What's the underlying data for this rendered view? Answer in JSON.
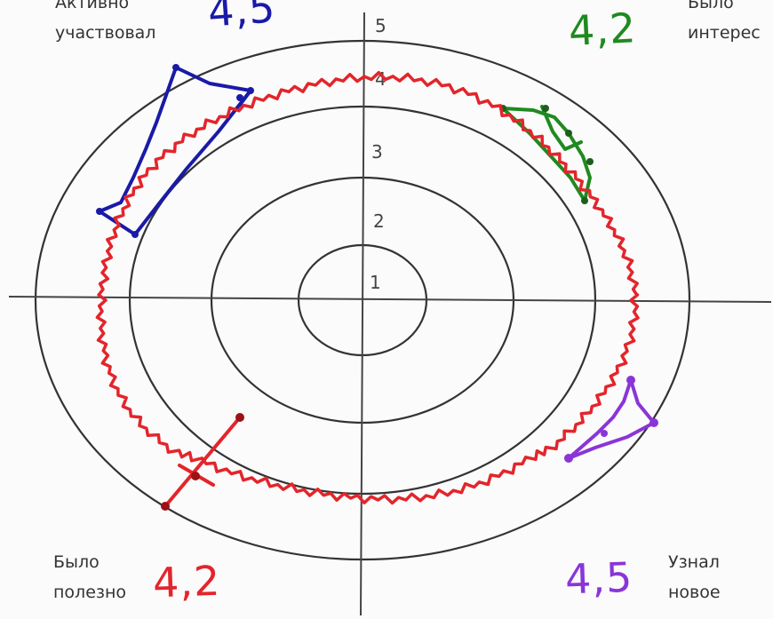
{
  "quadrants": {
    "top_left": {
      "label_1": "Активно",
      "label_2": "участвовал",
      "score": "4,5",
      "color": "#1a1aa8"
    },
    "top_right": {
      "label_1": "Было",
      "label_2": "интерес",
      "score": "4,2",
      "color": "#1f8a1f"
    },
    "bottom_left": {
      "label_1": "Было",
      "label_2": "полезно",
      "score": "4,2",
      "color": "#e3252b"
    },
    "bottom_right": {
      "label_1": "Узнал",
      "label_2": "новое",
      "score": "4,5",
      "color": "#8a35d8"
    }
  },
  "ring_labels": [
    "1",
    "2",
    "3",
    "4",
    "5"
  ],
  "colors": {
    "axis": "#444444",
    "ring": "#333333",
    "average_line": "#e3252b"
  }
}
